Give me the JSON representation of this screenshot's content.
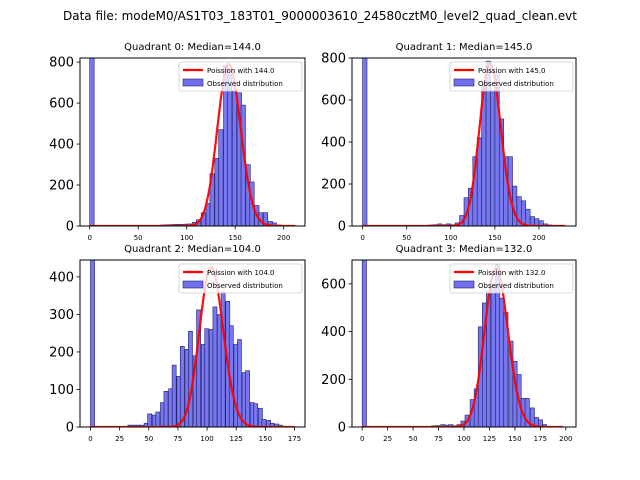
{
  "suptitle": "Data file: modeM0/AS1T03_183T01_9000003610_24580cztM0_level2_quad_clean.evt",
  "colors": {
    "bar_fill": "#7070ee",
    "bar_edge": "#20206a",
    "line": "#ff0000"
  },
  "chart_data": [
    {
      "type": "bar",
      "title": "Quadrant 0: Median=144.0",
      "legend": [
        "Poission with 144.0",
        "Observed distribution"
      ],
      "legend_position": "top-right",
      "xlim": [
        -10,
        222
      ],
      "ylim": [
        0,
        820
      ],
      "xticks": [
        0,
        50,
        100,
        150,
        200
      ],
      "yticks": [
        0,
        200,
        400,
        600,
        800
      ],
      "bin_width": 4.6,
      "bins": [
        [
          0,
          1500
        ],
        [
          73,
          5
        ],
        [
          78,
          6
        ],
        [
          83,
          7
        ],
        [
          87,
          8
        ],
        [
          92,
          8
        ],
        [
          97,
          9
        ],
        [
          101,
          10
        ],
        [
          106,
          18
        ],
        [
          110,
          30
        ],
        [
          115,
          65
        ],
        [
          120,
          110
        ],
        [
          124,
          255
        ],
        [
          129,
          330
        ],
        [
          133,
          470
        ],
        [
          138,
          785
        ],
        [
          142,
          740
        ],
        [
          147,
          660
        ],
        [
          152,
          650
        ],
        [
          156,
          590
        ],
        [
          161,
          300
        ],
        [
          165,
          215
        ],
        [
          170,
          100
        ],
        [
          174,
          65
        ],
        [
          179,
          65
        ],
        [
          184,
          22
        ],
        [
          188,
          15
        ],
        [
          193,
          5
        ]
      ],
      "poisson_mean": 144.0,
      "poisson_peak": 790,
      "poisson_xmax": 212
    },
    {
      "type": "bar",
      "title": "Quadrant 1: Median=145.0",
      "legend": [
        "Poission with 145.0",
        "Observed distribution"
      ],
      "legend_position": "top-right",
      "xlim": [
        -12,
        242
      ],
      "ylim": [
        0,
        800
      ],
      "xticks": [
        0,
        50,
        100,
        150,
        200
      ],
      "yticks": [
        0,
        200,
        400,
        600,
        800
      ],
      "bin_width": 5.0,
      "bins": [
        [
          0,
          1500
        ],
        [
          75,
          5
        ],
        [
          80,
          6
        ],
        [
          85,
          10
        ],
        [
          90,
          6
        ],
        [
          95,
          10
        ],
        [
          100,
          6
        ],
        [
          105,
          15
        ],
        [
          110,
          50
        ],
        [
          115,
          135
        ],
        [
          120,
          180
        ],
        [
          125,
          330
        ],
        [
          130,
          420
        ],
        [
          135,
          670
        ],
        [
          140,
          785
        ],
        [
          145,
          645
        ],
        [
          150,
          720
        ],
        [
          155,
          510
        ],
        [
          160,
          330
        ],
        [
          165,
          330
        ],
        [
          170,
          190
        ],
        [
          175,
          140
        ],
        [
          180,
          120
        ],
        [
          185,
          80
        ],
        [
          190,
          45
        ],
        [
          195,
          35
        ],
        [
          200,
          25
        ],
        [
          205,
          10
        ],
        [
          210,
          5
        ]
      ],
      "poisson_mean": 145.0,
      "poisson_peak": 775,
      "poisson_xmax": 230
    },
    {
      "type": "bar",
      "title": "Quadrant 2: Median=104.0",
      "legend": [
        "Poission with 104.0",
        "Observed distribution"
      ],
      "legend_position": "top-right",
      "xlim": [
        -9,
        184
      ],
      "ylim": [
        0,
        445
      ],
      "xticks": [
        0,
        25,
        50,
        75,
        100,
        125,
        150,
        175
      ],
      "yticks": [
        0,
        100,
        200,
        300,
        400
      ],
      "bin_width": 3.5,
      "bins": [
        [
          0,
          900
        ],
        [
          32,
          5
        ],
        [
          35,
          5
        ],
        [
          39,
          5
        ],
        [
          42,
          5
        ],
        [
          46,
          10
        ],
        [
          49,
          35
        ],
        [
          53,
          32
        ],
        [
          56,
          40
        ],
        [
          60,
          65
        ],
        [
          63,
          95
        ],
        [
          67,
          102
        ],
        [
          70,
          165
        ],
        [
          74,
          135
        ],
        [
          77,
          215
        ],
        [
          81,
          207
        ],
        [
          84,
          255
        ],
        [
          88,
          190
        ],
        [
          91,
          312
        ],
        [
          95,
          220
        ],
        [
          98,
          262
        ],
        [
          102,
          260
        ],
        [
          105,
          320
        ],
        [
          109,
          300
        ],
        [
          112,
          360
        ],
        [
          116,
          335
        ],
        [
          119,
          270
        ],
        [
          123,
          220
        ],
        [
          126,
          233
        ],
        [
          130,
          145
        ],
        [
          133,
          150
        ],
        [
          137,
          65
        ],
        [
          140,
          62
        ],
        [
          144,
          50
        ],
        [
          147,
          20
        ],
        [
          151,
          18
        ],
        [
          154,
          10
        ],
        [
          158,
          8
        ],
        [
          161,
          5
        ]
      ],
      "poisson_mean": 104.0,
      "poisson_peak": 425,
      "poisson_xmax": 175
    },
    {
      "type": "bar",
      "title": "Quadrant 3: Median=132.0",
      "legend": [
        "Poission with 132.0",
        "Observed distribution"
      ],
      "legend_position": "top-right",
      "xlim": [
        -10,
        210
      ],
      "ylim": [
        0,
        700
      ],
      "xticks": [
        0,
        25,
        50,
        75,
        100,
        125,
        150,
        175,
        200
      ],
      "yticks": [
        0,
        200,
        400,
        600
      ],
      "bin_width": 4.2,
      "bins": [
        [
          0,
          1500
        ],
        [
          68,
          5
        ],
        [
          72,
          6
        ],
        [
          77,
          10
        ],
        [
          81,
          8
        ],
        [
          85,
          10
        ],
        [
          89,
          5
        ],
        [
          93,
          10
        ],
        [
          97,
          25
        ],
        [
          101,
          50
        ],
        [
          106,
          115
        ],
        [
          110,
          160
        ],
        [
          114,
          420
        ],
        [
          118,
          520
        ],
        [
          122,
          570
        ],
        [
          127,
          590
        ],
        [
          131,
          680
        ],
        [
          135,
          540
        ],
        [
          139,
          480
        ],
        [
          144,
          360
        ],
        [
          148,
          275
        ],
        [
          152,
          220
        ],
        [
          156,
          120
        ],
        [
          160,
          120
        ],
        [
          165,
          80
        ],
        [
          169,
          40
        ],
        [
          173,
          30
        ],
        [
          177,
          10
        ]
      ],
      "poisson_mean": 132.0,
      "poisson_peak": 665,
      "poisson_xmax": 197
    }
  ]
}
